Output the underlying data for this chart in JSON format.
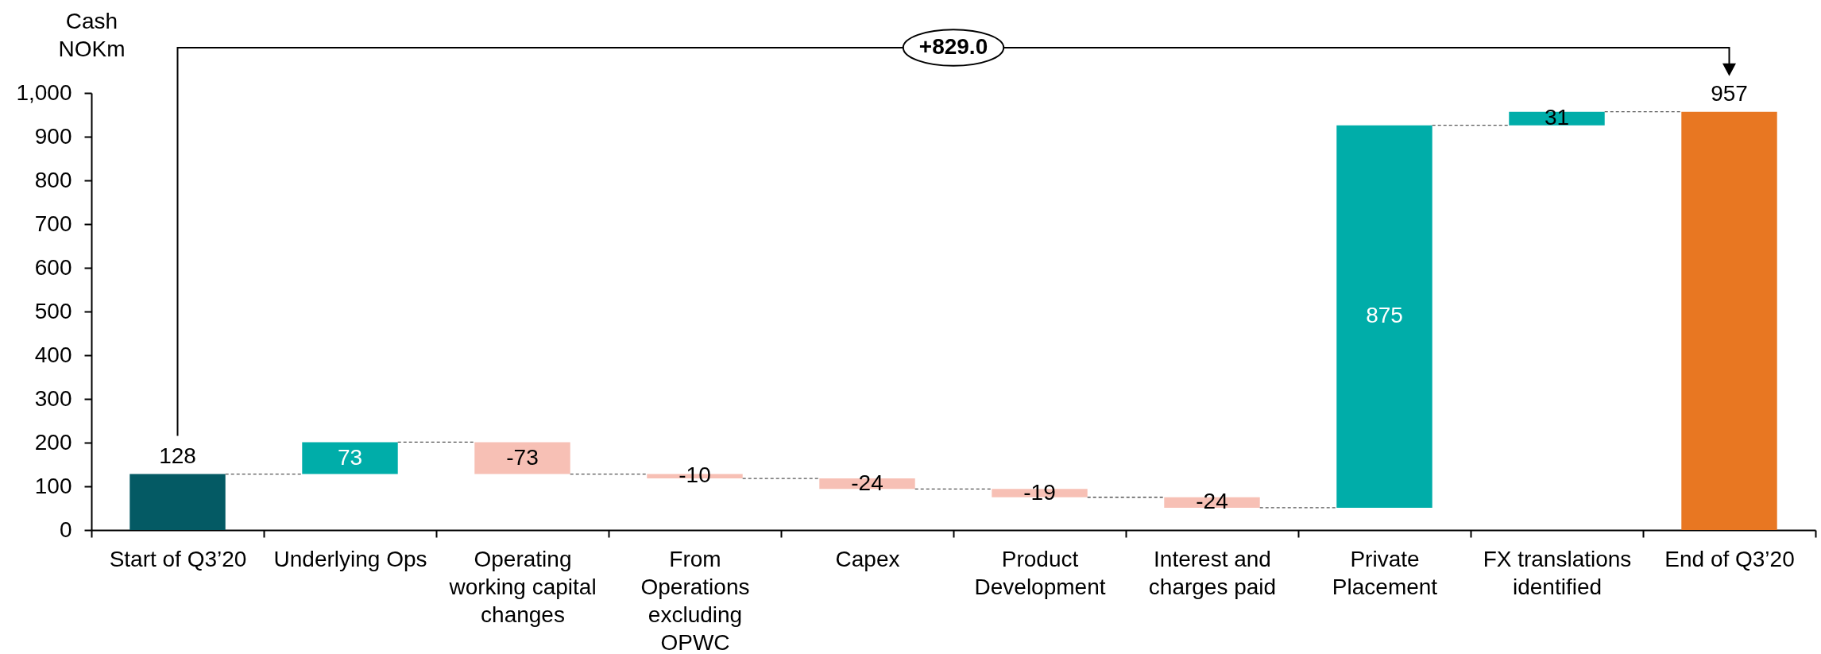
{
  "chart_data": {
    "type": "bar",
    "ylabel": "Cash NOKm",
    "categories": [
      "Start of Q3’20",
      "Underlying Ops",
      "Operating working capital changes",
      "From Operations excluding OPWC",
      "Capex",
      "Product Development",
      "Interest and charges paid",
      "Private Placement",
      "FX translations identified",
      "End of Q3’20"
    ],
    "values": [
      128,
      73,
      -73,
      -10,
      -24,
      -19,
      -24,
      875,
      31,
      957
    ],
    "base": [
      0,
      128,
      201,
      128,
      118,
      94,
      75,
      51,
      926,
      0
    ],
    "colors": [
      "#045a64",
      "#00ada9",
      "#f7c0b5",
      "#f7c0b5",
      "#f7c0b5",
      "#f7c0b5",
      "#f7c0b5",
      "#00ada9",
      "#00ada9",
      "#e87722"
    ],
    "ylim": [
      0,
      1000
    ],
    "yticks": [
      0,
      100,
      200,
      300,
      400,
      500,
      600,
      700,
      800,
      900,
      {
        "value": 1000,
        "label": "1,000"
      }
    ],
    "data_labels": true,
    "annotations": [
      "+829.0"
    ]
  }
}
